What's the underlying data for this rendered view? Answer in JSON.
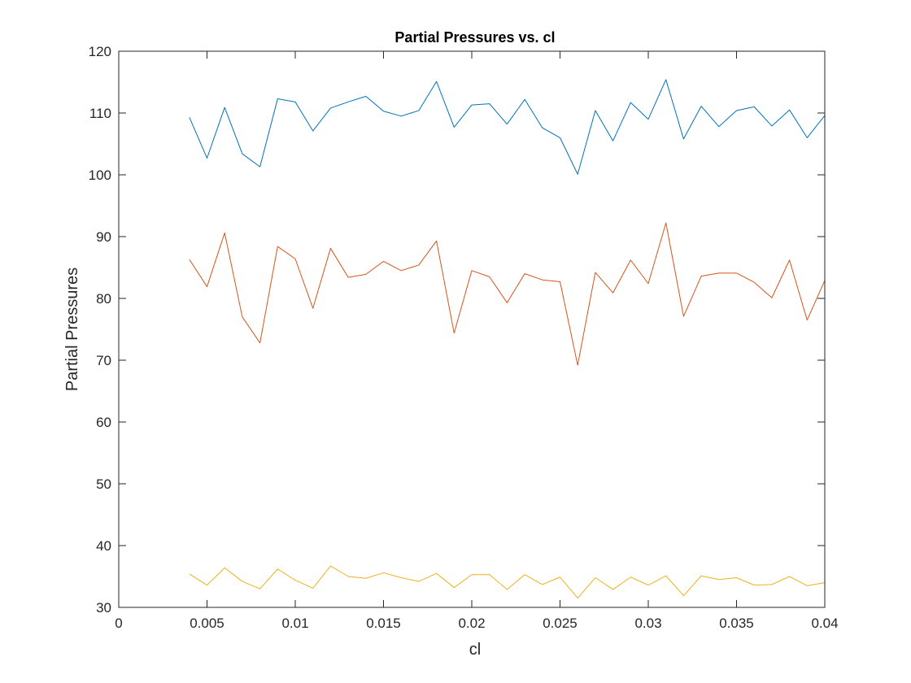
{
  "chart_data": {
    "type": "line",
    "title": "Partial Pressures vs. cl",
    "xlabel": "cl",
    "ylabel": "Partial Pressures",
    "xlim": [
      0,
      0.04
    ],
    "ylim": [
      30,
      120
    ],
    "xticks": [
      0,
      0.005,
      0.01,
      0.015,
      0.02,
      0.025,
      0.03,
      0.035,
      0.04
    ],
    "xtick_labels": [
      "0",
      "0.005",
      "0.01",
      "0.015",
      "0.02",
      "0.025",
      "0.03",
      "0.035",
      "0.04"
    ],
    "yticks": [
      30,
      40,
      50,
      60,
      70,
      80,
      90,
      100,
      110,
      120
    ],
    "ytick_labels": [
      "30",
      "40",
      "50",
      "60",
      "70",
      "80",
      "90",
      "100",
      "110",
      "120"
    ],
    "grid": false,
    "x": [
      0.004,
      0.005,
      0.006,
      0.007,
      0.008,
      0.009,
      0.01,
      0.011,
      0.012,
      0.013,
      0.014,
      0.015,
      0.016,
      0.017,
      0.018,
      0.019,
      0.02,
      0.021,
      0.022,
      0.023,
      0.024,
      0.025,
      0.026,
      0.027,
      0.028,
      0.029,
      0.03,
      0.031,
      0.032,
      0.033,
      0.034,
      0.035,
      0.036,
      0.037,
      0.038,
      0.039,
      0.04
    ],
    "series": [
      {
        "color": "#0072BD",
        "values": [
          109.3,
          102.7,
          110.9,
          103.4,
          101.3,
          112.3,
          111.8,
          107.1,
          110.8,
          111.8,
          112.7,
          110.3,
          109.5,
          110.4,
          115.1,
          107.7,
          111.3,
          111.5,
          108.2,
          112.2,
          107.6,
          106.0,
          100.1,
          110.4,
          105.5,
          111.7,
          109.0,
          115.4,
          105.8,
          111.1,
          107.8,
          110.4,
          111.0,
          107.9,
          110.5,
          106.0,
          109.6
        ]
      },
      {
        "color": "#D95319",
        "values": [
          86.3,
          81.9,
          90.6,
          77.0,
          72.8,
          88.4,
          86.4,
          78.4,
          88.1,
          83.4,
          83.9,
          86.0,
          84.5,
          85.4,
          89.3,
          74.4,
          84.5,
          83.5,
          79.3,
          84.0,
          83.0,
          82.7,
          69.2,
          84.2,
          80.9,
          86.2,
          82.4,
          92.2,
          77.1,
          83.6,
          84.1,
          84.1,
          82.6,
          80.1,
          86.2,
          76.5,
          82.9
        ]
      },
      {
        "color": "#EDB120",
        "values": [
          35.4,
          33.6,
          36.4,
          34.2,
          33.0,
          36.2,
          34.4,
          33.1,
          36.7,
          35.0,
          34.7,
          35.6,
          34.8,
          34.2,
          35.5,
          33.2,
          35.3,
          35.3,
          32.9,
          35.3,
          33.7,
          34.9,
          31.5,
          34.8,
          32.9,
          34.9,
          33.6,
          35.1,
          31.9,
          35.1,
          34.5,
          34.8,
          33.6,
          33.7,
          35.0,
          33.5,
          34.0
        ]
      }
    ]
  }
}
